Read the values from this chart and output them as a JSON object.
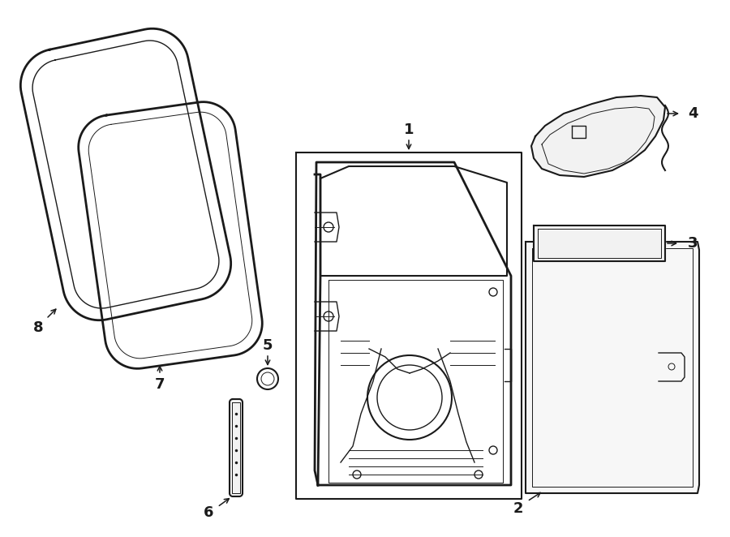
{
  "bg_color": "#ffffff",
  "line_color": "#1a1a1a",
  "lw_thick": 2.0,
  "lw_med": 1.5,
  "lw_thin": 1.0,
  "lw_hair": 0.7,
  "label_fontsize": 13
}
